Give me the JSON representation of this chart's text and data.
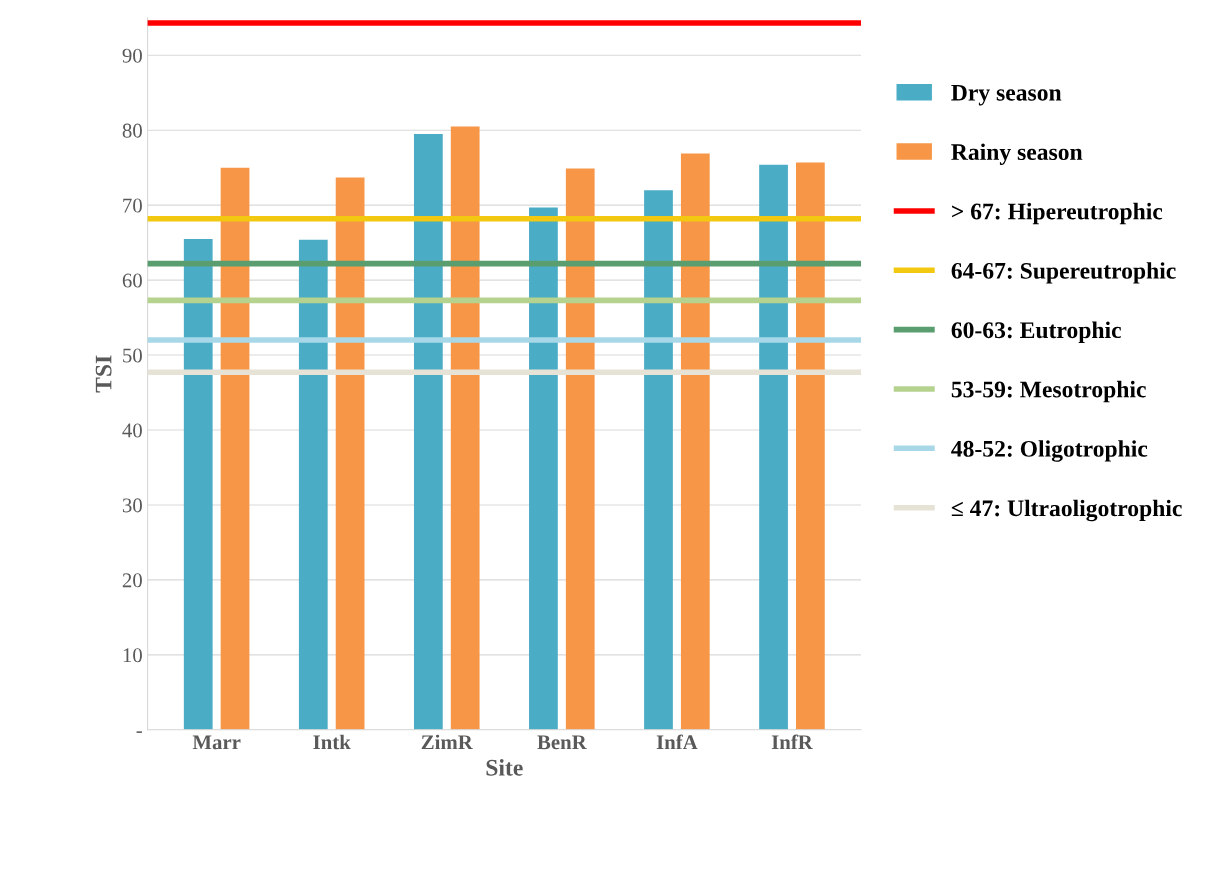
{
  "chart_data": {
    "type": "bar",
    "xlabel": "Site",
    "ylabel": "TSI",
    "categories": [
      "Marr",
      "Intk",
      "ZimR",
      "BenR",
      "InfA",
      "InfR"
    ],
    "series": [
      {
        "name": "Dry season",
        "color": "#4bacc6",
        "values": [
          65.5,
          65.4,
          79.5,
          69.7,
          72.0,
          75.4
        ]
      },
      {
        "name": "Rainy season",
        "color": "#f79646",
        "values": [
          75.0,
          73.7,
          80.5,
          74.9,
          76.9,
          75.7
        ]
      }
    ],
    "ylim": [
      0,
      95
    ],
    "yticks": [
      {
        "value": 0,
        "label": "-"
      },
      10,
      20,
      30,
      40,
      50,
      60,
      70,
      80,
      90
    ],
    "grid": "y",
    "legend": "right",
    "ref_lines": [
      {
        "axis": "y",
        "value": 94.3,
        "label": "> 67: Hipereutrophic",
        "color": "#ff0000"
      },
      {
        "axis": "y",
        "value": 68.2,
        "label": "64-67: Supereutrophic",
        "color": "#f2c811"
      },
      {
        "axis": "y",
        "value": 62.2,
        "label": "60-63: Eutrophic",
        "color": "#5a9e6f"
      },
      {
        "axis": "y",
        "value": 57.3,
        "label": "53-59: Mesotrophic",
        "color": "#b5d28f"
      },
      {
        "axis": "y",
        "value": 52.0,
        "label": "48-52: Oligotrophic",
        "color": "#a8d8e8"
      },
      {
        "axis": "y",
        "value": 47.7,
        "label": "≤ 47: Ultraoligotrophic",
        "color": "#e6e2d6"
      }
    ]
  }
}
